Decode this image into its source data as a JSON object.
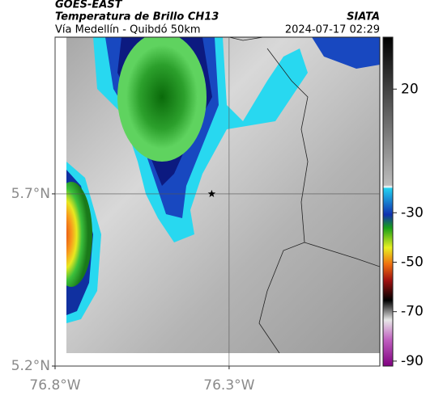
{
  "header": {
    "satellite": "GOES-EAST",
    "product": "Temperatura de Brillo CH13",
    "route": "Vía Medellín - Quibdó 50km",
    "source": "SIATA",
    "datetime": "2024-07-17 02:29"
  },
  "map": {
    "xlim": [
      -76.8,
      -75.867
    ],
    "ylim": [
      5.2,
      6.155
    ],
    "xticks": [
      {
        "value": -76.8,
        "label": "76.8°W"
      },
      {
        "value": -76.3,
        "label": "76.3°W"
      }
    ],
    "yticks": [
      {
        "value": 5.2,
        "label": "5.2°N"
      },
      {
        "value": 5.7,
        "label": "5.7°N"
      }
    ],
    "grid": true,
    "marker": {
      "lon": -76.35,
      "lat": 5.7
    }
  },
  "colorbar": {
    "clim": [
      -92,
      41
    ],
    "ticks": [
      20,
      -30,
      -50,
      -70,
      -90
    ]
  }
}
